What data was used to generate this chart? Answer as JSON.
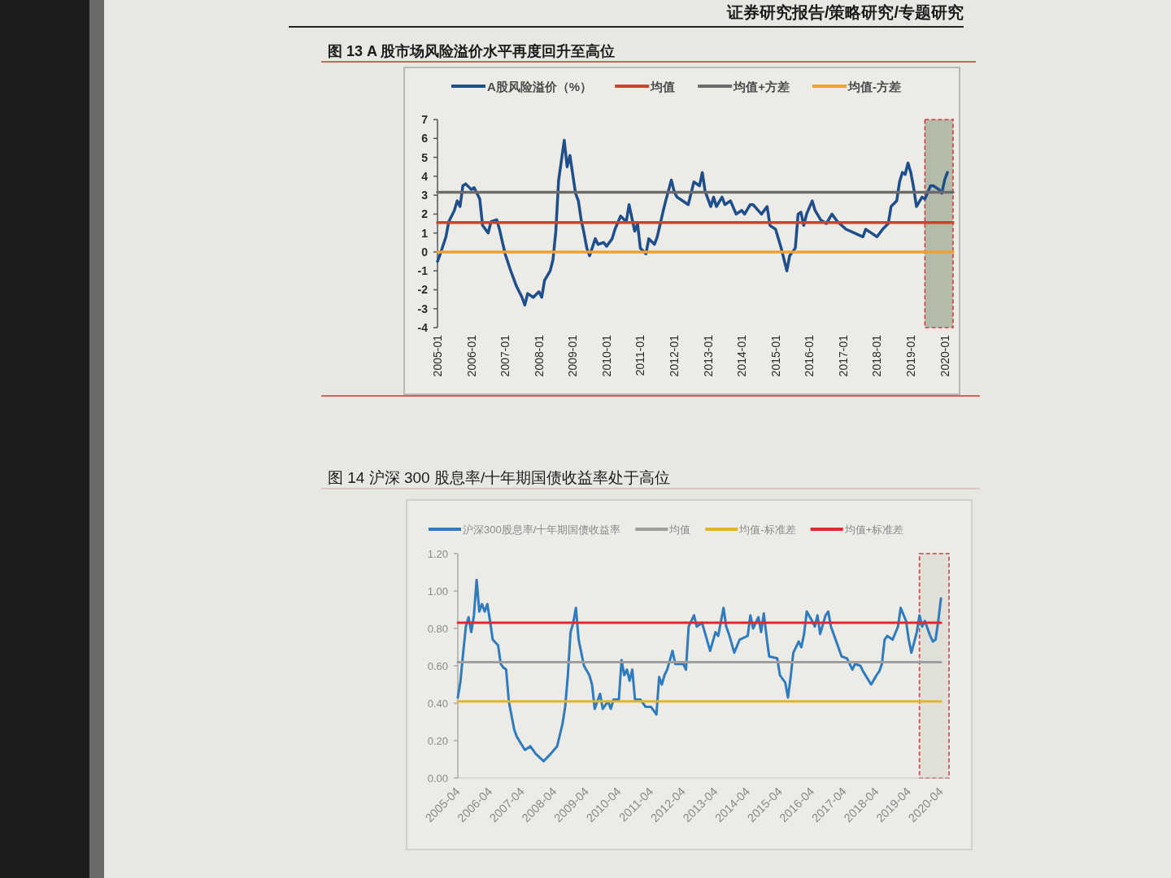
{
  "chart_data": [
    {
      "type": "line",
      "title": "图 13 A 股市场风险溢价水平再度回升至高位",
      "annotations": [
        "证券研究报告/策略研究/专题研究"
      ],
      "legend": "top",
      "x": [
        "2005-01",
        "2005-02",
        "2005-04",
        "2005-05",
        "2005-07",
        "2005-08",
        "2005-09",
        "2005-10",
        "2005-11",
        "2006-01",
        "2006-02",
        "2006-04",
        "2006-05",
        "2006-07",
        "2006-08",
        "2006-10",
        "2006-11",
        "2007-01",
        "2007-03",
        "2007-05",
        "2007-07",
        "2007-08",
        "2007-09",
        "2007-11",
        "2008-01",
        "2008-02",
        "2008-03",
        "2008-05",
        "2008-06",
        "2008-07",
        "2008-08",
        "2008-10",
        "2008-11",
        "2008-12",
        "2009-01",
        "2009-02",
        "2009-03",
        "2009-04",
        "2009-05",
        "2009-06",
        "2009-07",
        "2009-09",
        "2009-10",
        "2009-12",
        "2010-01",
        "2010-03",
        "2010-04",
        "2010-06",
        "2010-08",
        "2010-09",
        "2010-10",
        "2010-11",
        "2010-12",
        "2011-01",
        "2011-03",
        "2011-04",
        "2011-06",
        "2011-07",
        "2011-09",
        "2011-10",
        "2011-12",
        "2012-01",
        "2012-02",
        "2012-04",
        "2012-06",
        "2012-08",
        "2012-10",
        "2012-11",
        "2012-12",
        "2013-02",
        "2013-03",
        "2013-04",
        "2013-06",
        "2013-07",
        "2013-09",
        "2013-11",
        "2014-01",
        "2014-02",
        "2014-04",
        "2014-05",
        "2014-08",
        "2014-10",
        "2014-11",
        "2015-01",
        "2015-03",
        "2015-05",
        "2015-06",
        "2015-08",
        "2015-09",
        "2015-10",
        "2015-11",
        "2015-12",
        "2016-02",
        "2016-03",
        "2016-05",
        "2016-07",
        "2016-09",
        "2016-11",
        "2017-02",
        "2017-05",
        "2017-08",
        "2017-09",
        "2017-11",
        "2018-01",
        "2018-03",
        "2018-05",
        "2018-06",
        "2018-08",
        "2018-09",
        "2018-10",
        "2018-11",
        "2018-12",
        "2019-01",
        "2019-02",
        "2019-03",
        "2019-05",
        "2019-06",
        "2019-08",
        "2019-09",
        "2019-11",
        "2019-12",
        "2020-01",
        "2020-02"
      ],
      "series": [
        {
          "name": "A股风险溢价（%）",
          "color": "#1f4e8c",
          "values": [
            -0.5,
            -0.1,
            0.8,
            1.6,
            2.2,
            2.7,
            2.4,
            3.5,
            3.6,
            3.3,
            3.4,
            2.8,
            1.4,
            1.0,
            1.6,
            1.7,
            1.2,
            -0.1,
            -1.0,
            -1.8,
            -2.4,
            -2.8,
            -2.2,
            -2.4,
            -2.1,
            -2.4,
            -1.5,
            -1.0,
            -0.4,
            1.1,
            3.8,
            5.9,
            4.5,
            5.1,
            4.1,
            3.1,
            2.7,
            1.7,
            1.0,
            0.2,
            -0.2,
            0.7,
            0.4,
            0.5,
            0.3,
            0.7,
            1.2,
            1.9,
            1.6,
            2.5,
            1.8,
            1.1,
            1.5,
            0.2,
            -0.1,
            0.7,
            0.4,
            0.8,
            2.1,
            2.7,
            3.8,
            3.2,
            2.9,
            2.7,
            2.5,
            3.7,
            3.5,
            4.2,
            3.2,
            2.4,
            2.9,
            2.4,
            2.9,
            2.5,
            2.7,
            2.0,
            2.2,
            2.0,
            2.5,
            2.5,
            2.0,
            2.4,
            1.4,
            1.2,
            0.2,
            -1.0,
            -0.2,
            0.2,
            2.0,
            2.1,
            1.4,
            2.0,
            2.7,
            2.2,
            1.7,
            1.5,
            2.0,
            1.6,
            1.2,
            1.0,
            0.8,
            1.2,
            1.0,
            0.8,
            1.2,
            1.5,
            2.4,
            2.7,
            3.7,
            4.2,
            4.1,
            4.7,
            4.2,
            3.4,
            2.4,
            2.9,
            2.8,
            3.5,
            3.5,
            3.3,
            3.1,
            3.8,
            4.2
          ]
        },
        {
          "name": "均值",
          "color": "#c8442a",
          "x": [
            "2005-01",
            "2020-04"
          ],
          "values": [
            1.55,
            1.55
          ]
        },
        {
          "name": "均值+方差",
          "color": "#6b6b6b",
          "x": [
            "2005-01",
            "2020-04"
          ],
          "values": [
            3.15,
            3.15
          ]
        },
        {
          "name": "均值-方差",
          "color": "#f0a030",
          "x": [
            "2005-01",
            "2020-04"
          ],
          "values": [
            0.0,
            0.0
          ]
        }
      ],
      "xlim": [
        "2005-01",
        "2020-04"
      ],
      "xticks": [
        "2005-01",
        "2006-01",
        "2007-01",
        "2008-01",
        "2009-01",
        "2010-01",
        "2011-01",
        "2012-01",
        "2013-01",
        "2014-01",
        "2015-01",
        "2016-01",
        "2017-01",
        "2018-01",
        "2019-01",
        "2020-01"
      ],
      "ylim": [
        -4,
        7
      ],
      "yticks": [
        -4,
        -3,
        -2,
        -1,
        0,
        1,
        2,
        3,
        4,
        5,
        6,
        7
      ],
      "bands": [
        {
          "axis": "x",
          "from": "2019-06",
          "to": "2020-04",
          "color": "#b3bca8"
        }
      ]
    },
    {
      "type": "line",
      "title": "图 14 沪深 300 股息率/十年期国债收益率处于高位",
      "legend": "top",
      "x": [
        "2005-04",
        "2005-05",
        "2005-06",
        "2005-07",
        "2005-08",
        "2005-09",
        "2005-10",
        "2005-11",
        "2005-12",
        "2006-01",
        "2006-02",
        "2006-03",
        "2006-04",
        "2006-05",
        "2006-07",
        "2006-08",
        "2006-09",
        "2006-10",
        "2006-11",
        "2007-01",
        "2007-02",
        "2007-05",
        "2007-07",
        "2007-09",
        "2007-12",
        "2008-02",
        "2008-05",
        "2008-07",
        "2008-08",
        "2008-09",
        "2008-10",
        "2008-11",
        "2008-12",
        "2009-01",
        "2009-02",
        "2009-03",
        "2009-05",
        "2009-06",
        "2009-07",
        "2009-09",
        "2009-10",
        "2009-12",
        "2010-01",
        "2010-02",
        "2010-04",
        "2010-05",
        "2010-06",
        "2010-07",
        "2010-08",
        "2010-09",
        "2010-10",
        "2010-12",
        "2011-02",
        "2011-04",
        "2011-06",
        "2011-07",
        "2011-08",
        "2011-09",
        "2011-10",
        "2011-12",
        "2012-01",
        "2012-04",
        "2012-05",
        "2012-06",
        "2012-08",
        "2012-09",
        "2012-11",
        "2013-02",
        "2013-04",
        "2013-05",
        "2013-07",
        "2013-08",
        "2013-09",
        "2013-11",
        "2014-01",
        "2014-04",
        "2014-05",
        "2014-06",
        "2014-08",
        "2014-09",
        "2014-10",
        "2014-11",
        "2014-12",
        "2015-03",
        "2015-04",
        "2015-06",
        "2015-07",
        "2015-08",
        "2015-09",
        "2015-11",
        "2015-12",
        "2016-01",
        "2016-02",
        "2016-04",
        "2016-05",
        "2016-06",
        "2016-07",
        "2016-09",
        "2016-10",
        "2016-11",
        "2017-01",
        "2017-03",
        "2017-05",
        "2017-07",
        "2017-08",
        "2017-10",
        "2017-11",
        "2018-02",
        "2018-04",
        "2018-05",
        "2018-06",
        "2018-07",
        "2018-08",
        "2018-10",
        "2018-12",
        "2019-01",
        "2019-03",
        "2019-04",
        "2019-05",
        "2019-07",
        "2019-08",
        "2019-09",
        "2019-10",
        "2019-12",
        "2020-01",
        "2020-02",
        "2020-03",
        "2020-04"
      ],
      "series": [
        {
          "name": "沪深300股息率/十年期国债收益率",
          "color": "#2e7bbf",
          "values": [
            0.43,
            0.52,
            0.67,
            0.81,
            0.86,
            0.78,
            0.87,
            1.06,
            0.89,
            0.93,
            0.89,
            0.93,
            0.84,
            0.74,
            0.71,
            0.61,
            0.59,
            0.58,
            0.41,
            0.26,
            0.22,
            0.15,
            0.17,
            0.13,
            0.09,
            0.12,
            0.17,
            0.29,
            0.38,
            0.55,
            0.78,
            0.83,
            0.91,
            0.74,
            0.67,
            0.6,
            0.55,
            0.5,
            0.37,
            0.45,
            0.37,
            0.41,
            0.37,
            0.42,
            0.42,
            0.63,
            0.55,
            0.58,
            0.52,
            0.58,
            0.42,
            0.42,
            0.38,
            0.38,
            0.34,
            0.54,
            0.5,
            0.55,
            0.58,
            0.68,
            0.61,
            0.61,
            0.58,
            0.81,
            0.87,
            0.81,
            0.83,
            0.68,
            0.78,
            0.76,
            0.91,
            0.81,
            0.77,
            0.67,
            0.74,
            0.76,
            0.87,
            0.8,
            0.86,
            0.78,
            0.88,
            0.76,
            0.65,
            0.64,
            0.55,
            0.51,
            0.43,
            0.54,
            0.67,
            0.73,
            0.7,
            0.77,
            0.89,
            0.84,
            0.81,
            0.87,
            0.77,
            0.87,
            0.89,
            0.81,
            0.73,
            0.65,
            0.64,
            0.58,
            0.61,
            0.6,
            0.57,
            0.5,
            0.55,
            0.57,
            0.61,
            0.74,
            0.76,
            0.74,
            0.81,
            0.91,
            0.84,
            0.74,
            0.67,
            0.78,
            0.87,
            0.81,
            0.84,
            0.76,
            0.73,
            0.74,
            0.84,
            0.96
          ]
        },
        {
          "name": "均值",
          "color": "#9e9e9e",
          "x": [
            "2005-04",
            "2020-04"
          ],
          "values": [
            0.62,
            0.62
          ]
        },
        {
          "name": "均值-标准差",
          "color": "#e6b422",
          "x": [
            "2005-04",
            "2020-04"
          ],
          "values": [
            0.41,
            0.41
          ]
        },
        {
          "name": "均值+标准差",
          "color": "#e0282e",
          "x": [
            "2005-04",
            "2020-04"
          ],
          "values": [
            0.83,
            0.83
          ]
        }
      ],
      "xlim": [
        "2005-04",
        "2020-07"
      ],
      "xticks": [
        "2005-04",
        "2006-04",
        "2007-04",
        "2008-04",
        "2009-04",
        "2010-04",
        "2011-04",
        "2012-04",
        "2013-04",
        "2014-04",
        "2015-04",
        "2016-04",
        "2017-04",
        "2018-04",
        "2019-04",
        "2020-04"
      ],
      "ylim": [
        0,
        1.2
      ],
      "yticks": [
        {
          "value": 0,
          "label": "0.00"
        },
        {
          "value": 0.2,
          "label": "0.20"
        },
        {
          "value": 0.4,
          "label": "0.40"
        },
        {
          "value": 0.6,
          "label": "0.60"
        },
        {
          "value": 0.8,
          "label": "0.80"
        },
        {
          "value": 1.0,
          "label": "1.00"
        },
        {
          "value": 1.2,
          "label": "1.20"
        }
      ],
      "bands": [
        {
          "axis": "x",
          "from": "2019-08",
          "to": "2020-07",
          "color": "#e0dfd8"
        }
      ]
    }
  ]
}
